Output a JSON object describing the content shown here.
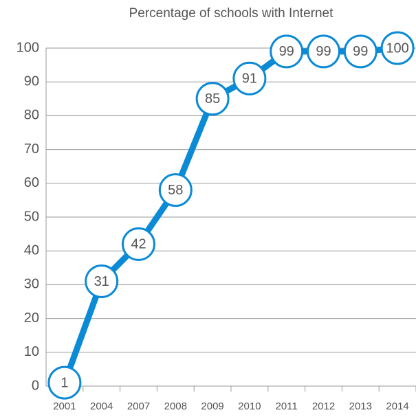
{
  "chart_data": {
    "type": "line",
    "title": "Percentage of schools with Internet",
    "categories": [
      "2001",
      "2004",
      "2007",
      "2008",
      "2009",
      "2010",
      "2011",
      "2012",
      "2013",
      "2014"
    ],
    "series": [
      {
        "name": "Percentage of schools with Internet",
        "color": "#0b8ad6",
        "values": [
          1,
          31,
          42,
          58,
          85,
          91,
          99,
          99,
          99,
          100
        ]
      }
    ],
    "ylim": [
      0,
      100
    ],
    "yticks": [
      0,
      10,
      20,
      30,
      40,
      50,
      60,
      70,
      80,
      90,
      100
    ],
    "grid": true
  }
}
